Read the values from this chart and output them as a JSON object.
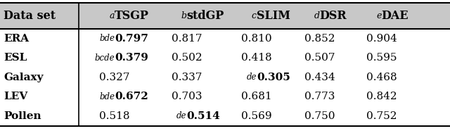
{
  "col_headers": [
    "Data set",
    "TSGP",
    "stdGP",
    "SLIM",
    "DSR",
    "DAE"
  ],
  "col_header_prefixes": [
    "",
    "a",
    "b",
    "c",
    "d",
    "e"
  ],
  "rows": [
    {
      "dataset": "ERA",
      "values": [
        "0.797",
        "0.817",
        "0.810",
        "0.852",
        "0.904"
      ],
      "bold": [
        true,
        false,
        false,
        false,
        false
      ],
      "prefix": [
        "bde",
        "",
        "",
        "",
        ""
      ]
    },
    {
      "dataset": "ESL",
      "values": [
        "0.379",
        "0.502",
        "0.418",
        "0.507",
        "0.595"
      ],
      "bold": [
        true,
        false,
        false,
        false,
        false
      ],
      "prefix": [
        "bcde",
        "",
        "",
        "",
        ""
      ]
    },
    {
      "dataset": "Galaxy",
      "values": [
        "0.327",
        "0.337",
        "0.305",
        "0.434",
        "0.468"
      ],
      "bold": [
        false,
        false,
        true,
        false,
        false
      ],
      "prefix": [
        "",
        "",
        "de",
        "",
        ""
      ]
    },
    {
      "dataset": "LEV",
      "values": [
        "0.672",
        "0.703",
        "0.681",
        "0.773",
        "0.842"
      ],
      "bold": [
        true,
        false,
        false,
        false,
        false
      ],
      "prefix": [
        "bde",
        "",
        "",
        "",
        ""
      ]
    },
    {
      "dataset": "Pollen",
      "values": [
        "0.518",
        "0.514",
        "0.569",
        "0.750",
        "0.752"
      ],
      "bold": [
        false,
        true,
        false,
        false,
        false
      ],
      "prefix": [
        "",
        "de",
        "",
        "",
        ""
      ]
    }
  ],
  "bg_color": "#ffffff",
  "header_bg": "#c8c8c8",
  "font_size": 11,
  "header_font_size": 11.5
}
